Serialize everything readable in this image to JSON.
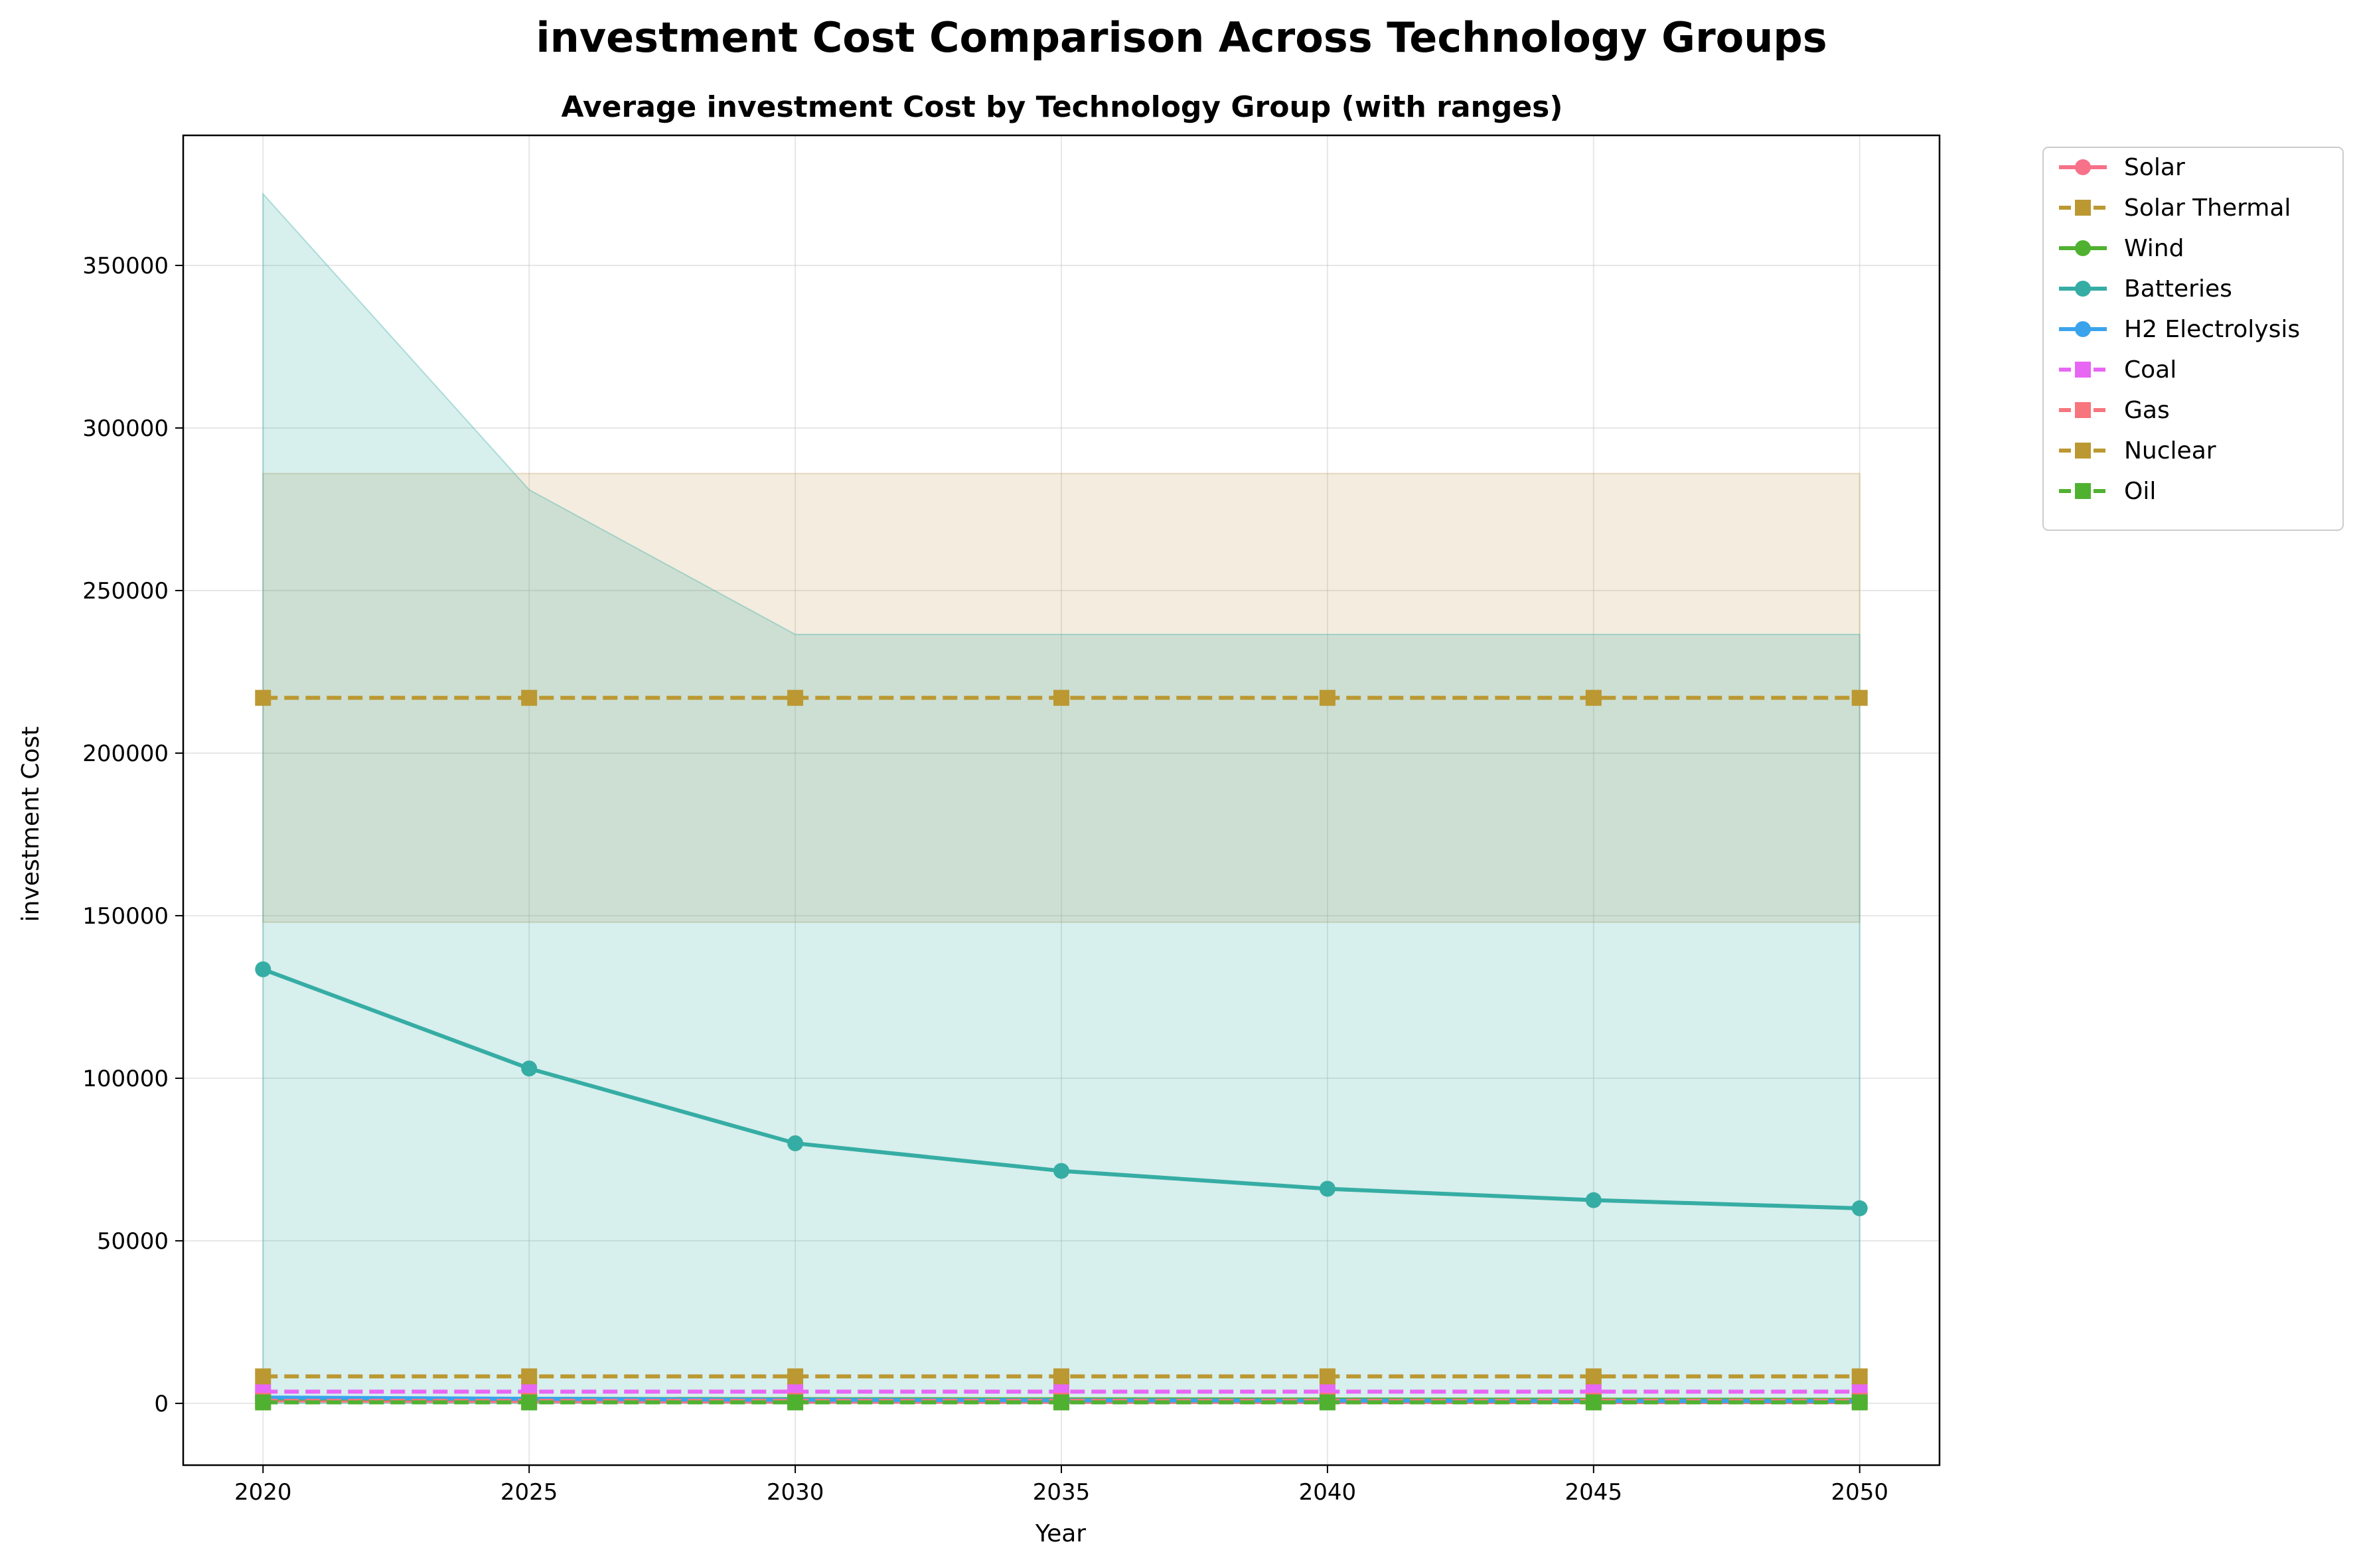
{
  "chart_data": {
    "type": "line",
    "title": "investment Cost Comparison Across Technology Groups",
    "subtitle": "Average investment Cost by Technology Group (with ranges)",
    "xlabel": "Year",
    "ylabel": "investment Cost",
    "x": [
      2020,
      2025,
      2030,
      2035,
      2040,
      2045,
      2050
    ],
    "xlim": [
      2018.5,
      2051.5
    ],
    "ylim": [
      -19000,
      390000
    ],
    "xticks": [
      2020,
      2025,
      2030,
      2035,
      2040,
      2045,
      2050
    ],
    "yticks": [
      0,
      50000,
      100000,
      150000,
      200000,
      250000,
      300000,
      350000
    ],
    "grid": true,
    "legend": "outside-top-right",
    "bands": [
      {
        "name": "Solar Thermal range",
        "color": "#c4a060",
        "opacity": 0.2,
        "lower": [
          148000,
          148000,
          148000,
          148000,
          148000,
          148000,
          148000
        ],
        "upper": [
          286000,
          286000,
          286000,
          286000,
          286000,
          286000,
          286000
        ]
      },
      {
        "name": "Batteries range",
        "color": "#36ada4",
        "opacity": 0.2,
        "lower": [
          0,
          0,
          0,
          0,
          0,
          0,
          0
        ],
        "upper": [
          372000,
          281000,
          236500,
          236500,
          236500,
          236500,
          236500
        ]
      }
    ],
    "series": [
      {
        "name": "Solar",
        "color": "#f77189",
        "dash": "solid",
        "marker": "circle",
        "values": [
          900,
          700,
          550,
          480,
          430,
          400,
          380
        ]
      },
      {
        "name": "Solar Thermal",
        "color": "#bb9832",
        "dash": "dashed",
        "marker": "square",
        "values": [
          217000,
          217000,
          217000,
          217000,
          217000,
          217000,
          217000
        ]
      },
      {
        "name": "Wind",
        "color": "#50b131",
        "dash": "solid",
        "marker": "circle",
        "values": [
          1500,
          1400,
          1300,
          1250,
          1200,
          1150,
          1100
        ]
      },
      {
        "name": "Batteries",
        "color": "#36ada4",
        "dash": "solid",
        "marker": "circle",
        "values": [
          133500,
          103000,
          80000,
          71500,
          66000,
          62500,
          60000
        ]
      },
      {
        "name": "H2 Electrolysis",
        "color": "#3ba3ec",
        "dash": "solid",
        "marker": "circle",
        "values": [
          1800,
          1400,
          1100,
          950,
          850,
          750,
          700
        ]
      },
      {
        "name": "Coal",
        "color": "#e866f4",
        "dash": "dashed",
        "marker": "square",
        "values": [
          3600,
          3600,
          3600,
          3600,
          3600,
          3600,
          3600
        ]
      },
      {
        "name": "Gas",
        "color": "#f7757c",
        "dash": "dashed",
        "marker": "square",
        "values": [
          800,
          800,
          800,
          800,
          800,
          800,
          800
        ]
      },
      {
        "name": "Nuclear",
        "color": "#bb9832",
        "dash": "dashed",
        "marker": "square",
        "values": [
          8300,
          8300,
          8300,
          8300,
          8300,
          8300,
          8300
        ]
      },
      {
        "name": "Oil",
        "color": "#50b131",
        "dash": "dashed",
        "marker": "square",
        "values": [
          300,
          300,
          300,
          300,
          300,
          300,
          300
        ]
      }
    ]
  }
}
